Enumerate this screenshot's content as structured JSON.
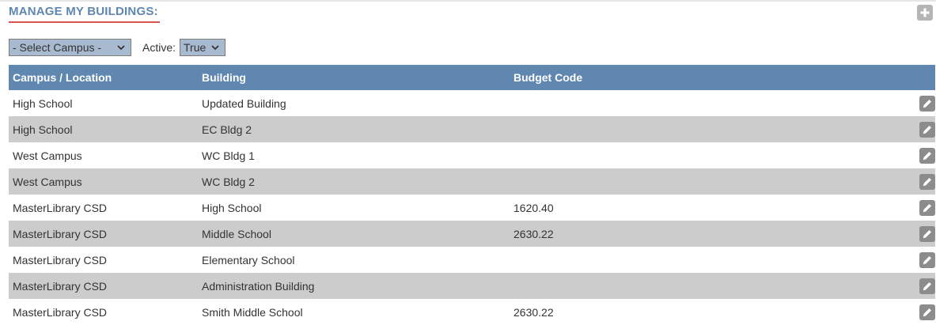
{
  "header": {
    "title": "MANAGE MY BUILDINGS:",
    "add_icon": "plus-icon"
  },
  "filters": {
    "campus_select_value": "- Select Campus -",
    "active_label": "Active:",
    "active_select_value": "True"
  },
  "table": {
    "columns": [
      "Campus / Location",
      "Building",
      "Budget Code",
      ""
    ],
    "rows": [
      {
        "campus": "High School",
        "building": "Updated Building",
        "budget_code": ""
      },
      {
        "campus": "High School",
        "building": "EC Bldg 2",
        "budget_code": ""
      },
      {
        "campus": "West Campus",
        "building": "WC Bldg 1",
        "budget_code": ""
      },
      {
        "campus": "West Campus",
        "building": "WC Bldg 2",
        "budget_code": ""
      },
      {
        "campus": "MasterLibrary CSD",
        "building": "High School",
        "budget_code": "1620.40"
      },
      {
        "campus": "MasterLibrary CSD",
        "building": "Middle School",
        "budget_code": "2630.22"
      },
      {
        "campus": "MasterLibrary CSD",
        "building": "Elementary School",
        "budget_code": ""
      },
      {
        "campus": "MasterLibrary CSD",
        "building": "Administration Building",
        "budget_code": ""
      },
      {
        "campus": "MasterLibrary CSD",
        "building": "Smith Middle School",
        "budget_code": "2630.22"
      }
    ],
    "row_icon": "pencil-icon"
  },
  "colors": {
    "header_bg": "#5f87b0",
    "title": "#5f87b0",
    "title_underline": "#d9534f",
    "alt_row": "#cccccc",
    "select_bg": "#a7bad0"
  }
}
